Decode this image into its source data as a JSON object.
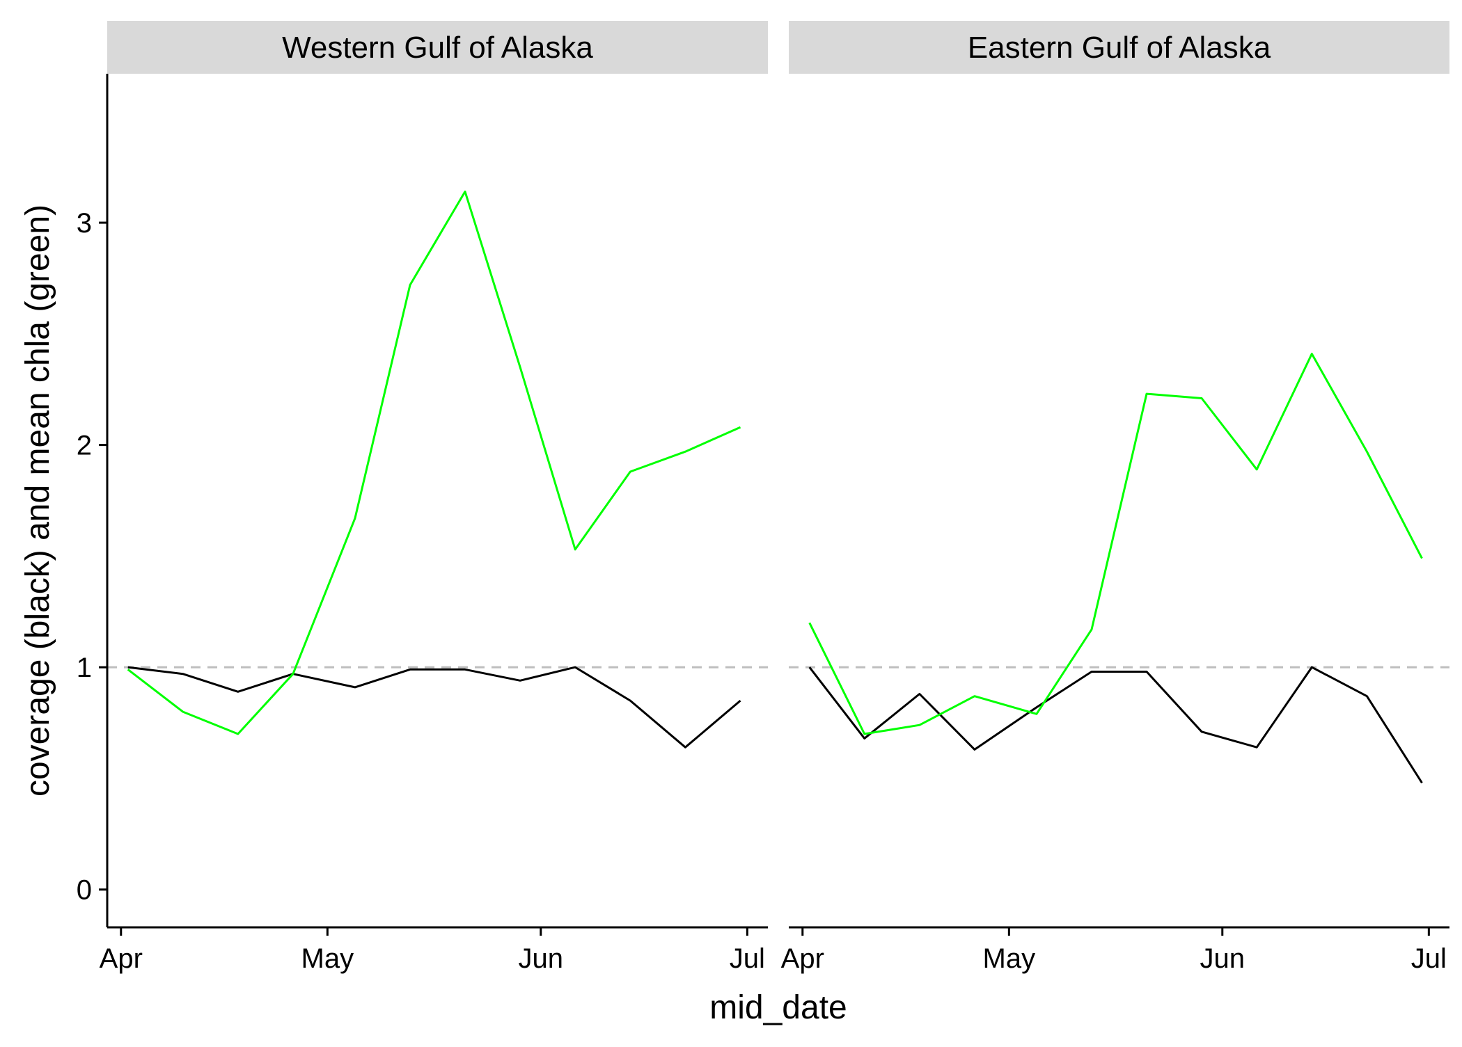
{
  "chart_data": {
    "type": "line",
    "xlabel": "mid_date",
    "ylabel": "coverage (black) and mean chla (green)",
    "x_ticks": [
      {
        "date": "2000-04-01",
        "label": "Apr"
      },
      {
        "date": "2000-05-01",
        "label": "May"
      },
      {
        "date": "2000-06-01",
        "label": "Jun"
      },
      {
        "date": "2000-07-01",
        "label": "Jul"
      }
    ],
    "y_ticks": [
      0,
      1,
      2,
      3
    ],
    "xlim": [
      "2000-03-30",
      "2000-07-04"
    ],
    "ylim": [
      -0.17,
      3.67
    ],
    "reference_line": {
      "y": 1,
      "style": "dashed",
      "color": "#BEBEBE"
    },
    "grid": false,
    "colors": {
      "coverage": "#000000",
      "chla": "#00FF00",
      "strip_bg": "#D9D9D9"
    },
    "facets": [
      {
        "title": "Western Gulf of Alaska",
        "series": [
          {
            "color": "#000000",
            "x": [
              "2000-04-02",
              "2000-04-10",
              "2000-04-18",
              "2000-04-26",
              "2000-05-05",
              "2000-05-13",
              "2000-05-21",
              "2000-05-29",
              "2000-06-06",
              "2000-06-14",
              "2000-06-22",
              "2000-06-30"
            ],
            "values": [
              1.0,
              0.97,
              0.89,
              0.97,
              0.91,
              0.99,
              0.99,
              0.94,
              1.0,
              0.85,
              0.64,
              0.85
            ]
          },
          {
            "color": "#00FF00",
            "x": [
              "2000-04-02",
              "2000-04-10",
              "2000-04-18",
              "2000-04-26",
              "2000-05-05",
              "2000-05-13",
              "2000-05-21",
              "2000-05-29",
              "2000-06-06",
              "2000-06-14",
              "2000-06-22",
              "2000-06-30"
            ],
            "values": [
              0.99,
              0.8,
              0.7,
              0.97,
              1.67,
              2.72,
              3.14,
              2.35,
              1.53,
              1.88,
              1.97,
              2.08
            ]
          }
        ]
      },
      {
        "title": "Eastern Gulf of Alaska",
        "series": [
          {
            "color": "#000000",
            "x": [
              "2000-04-02",
              "2000-04-10",
              "2000-04-18",
              "2000-04-26",
              "2000-05-05",
              "2000-05-13",
              "2000-05-21",
              "2000-05-29",
              "2000-06-06",
              "2000-06-14",
              "2000-06-22",
              "2000-06-30"
            ],
            "values": [
              1.0,
              0.68,
              0.88,
              0.63,
              0.82,
              0.98,
              0.98,
              0.71,
              0.64,
              1.0,
              0.87,
              0.48
            ]
          },
          {
            "color": "#00FF00",
            "x": [
              "2000-04-02",
              "2000-04-10",
              "2000-04-18",
              "2000-04-26",
              "2000-05-05",
              "2000-05-13",
              "2000-05-21",
              "2000-05-29",
              "2000-06-06",
              "2000-06-14",
              "2000-06-22",
              "2000-06-30"
            ],
            "values": [
              1.2,
              0.7,
              0.74,
              0.87,
              0.79,
              1.17,
              2.23,
              2.21,
              1.89,
              2.41,
              1.97,
              1.49
            ]
          }
        ]
      }
    ]
  }
}
